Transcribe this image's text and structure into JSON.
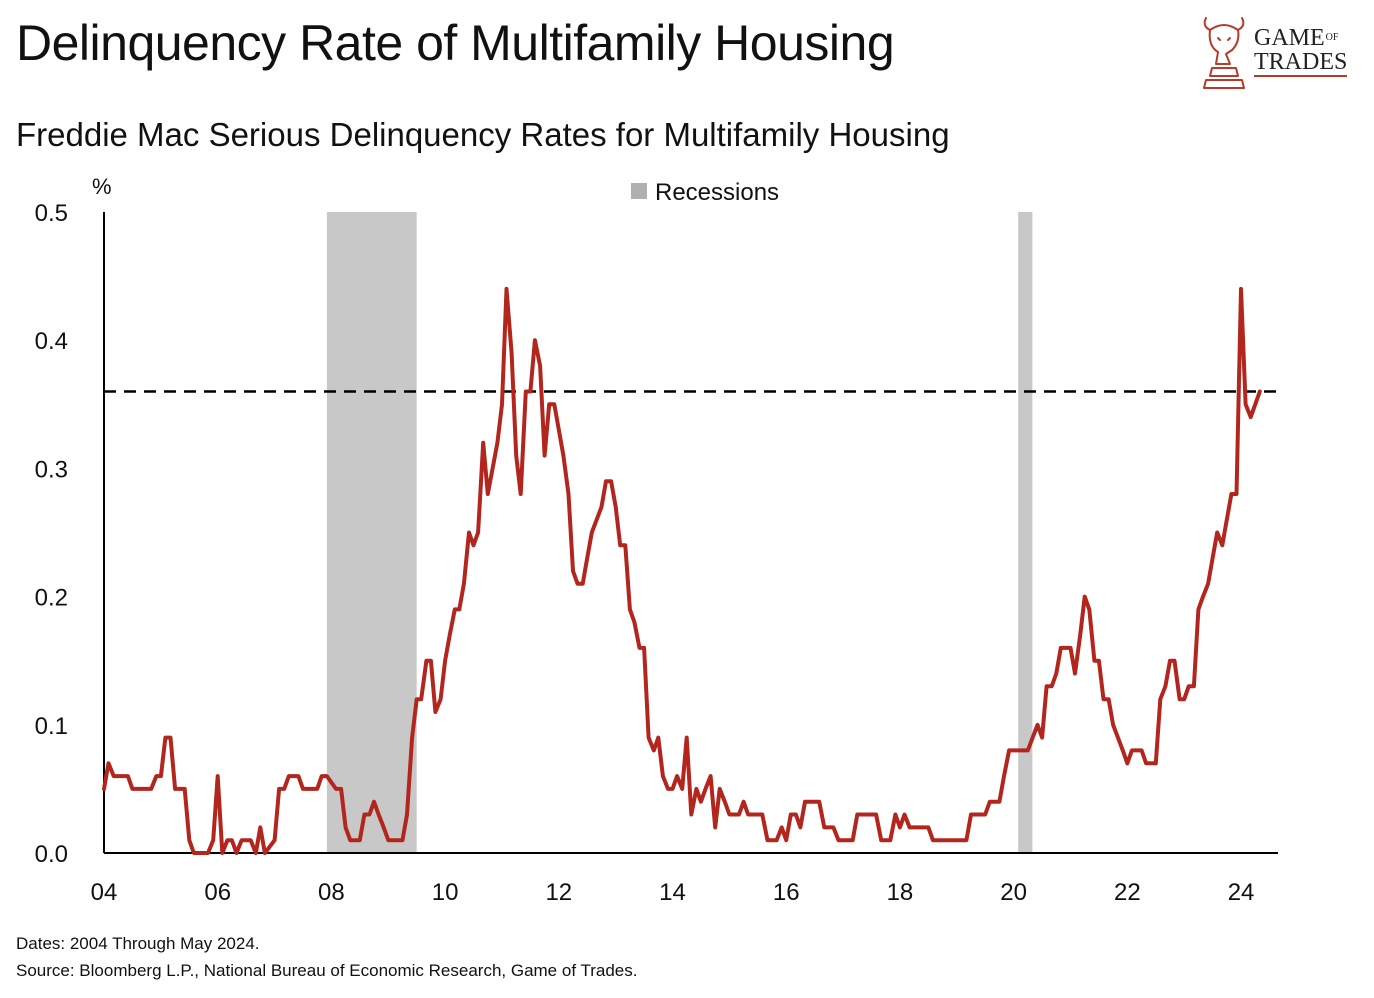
{
  "header": {
    "title": "Delinquency Rate of Multifamily Housing",
    "subtitle": "Freddie Mac Serious Delinquency Rates for Multifamily Housing"
  },
  "logo": {
    "line1": "GAME",
    "line1_small": "OF",
    "line2": "TRADES"
  },
  "footer": {
    "dates_note": "Dates: 2004 Through May 2024.",
    "source_note": "Source: Bloomberg L.P., National Bureau of Economic Research, Game of Trades."
  },
  "colors": {
    "line": "#b3261e",
    "recession": "#c8c8c8",
    "logo": "#b73a2a"
  },
  "chart_data": {
    "type": "line",
    "title": "Delinquency Rate of Multifamily Housing",
    "subtitle": "Freddie Mac Serious Delinquency Rates for Multifamily Housing",
    "unit_label": "%",
    "xlabel": "",
    "ylabel": "%",
    "ylim": [
      0.0,
      0.5
    ],
    "xlim": [
      2004.0,
      2024.65
    ],
    "y_ticks": [
      0.0,
      0.1,
      0.2,
      0.3,
      0.4,
      0.5
    ],
    "y_tick_labels": [
      "0.0",
      "0.1",
      "0.2",
      "0.3",
      "0.4",
      "0.5"
    ],
    "x_ticks": [
      2004,
      2006,
      2008,
      2010,
      2012,
      2014,
      2016,
      2018,
      2020,
      2022,
      2024
    ],
    "x_tick_labels": [
      "04",
      "06",
      "08",
      "10",
      "12",
      "14",
      "16",
      "18",
      "20",
      "22",
      "24"
    ],
    "legend": {
      "label": "Recessions",
      "position": "top-center"
    },
    "grid": false,
    "reference_line": {
      "y": 0.36,
      "style": "dashed"
    },
    "recessions": [
      {
        "start": 2007.92,
        "end": 2009.5
      },
      {
        "start": 2020.08,
        "end": 2020.33
      }
    ],
    "series": [
      {
        "name": "Freddie Mac Serious Delinquency Rate, Multifamily",
        "points": [
          [
            2004.0,
            0.05
          ],
          [
            2004.08,
            0.07
          ],
          [
            2004.17,
            0.06
          ],
          [
            2004.42,
            0.06
          ],
          [
            2004.5,
            0.05
          ],
          [
            2004.83,
            0.05
          ],
          [
            2004.92,
            0.06
          ],
          [
            2005.0,
            0.06
          ],
          [
            2005.08,
            0.09
          ],
          [
            2005.17,
            0.09
          ],
          [
            2005.25,
            0.05
          ],
          [
            2005.42,
            0.05
          ],
          [
            2005.5,
            0.01
          ],
          [
            2005.58,
            0.0
          ],
          [
            2005.83,
            0.0
          ],
          [
            2005.92,
            0.01
          ],
          [
            2006.0,
            0.06
          ],
          [
            2006.08,
            0.0
          ],
          [
            2006.17,
            0.01
          ],
          [
            2006.25,
            0.01
          ],
          [
            2006.33,
            0.0
          ],
          [
            2006.42,
            0.01
          ],
          [
            2006.58,
            0.01
          ],
          [
            2006.67,
            0.0
          ],
          [
            2006.75,
            0.02
          ],
          [
            2006.83,
            0.0
          ],
          [
            2007.0,
            0.01
          ],
          [
            2007.08,
            0.05
          ],
          [
            2007.17,
            0.05
          ],
          [
            2007.25,
            0.06
          ],
          [
            2007.42,
            0.06
          ],
          [
            2007.5,
            0.05
          ],
          [
            2007.75,
            0.05
          ],
          [
            2007.83,
            0.06
          ],
          [
            2007.92,
            0.06
          ],
          [
            2008.08,
            0.05
          ],
          [
            2008.17,
            0.05
          ],
          [
            2008.25,
            0.02
          ],
          [
            2008.33,
            0.01
          ],
          [
            2008.5,
            0.01
          ],
          [
            2008.58,
            0.03
          ],
          [
            2008.67,
            0.03
          ],
          [
            2008.75,
            0.04
          ],
          [
            2008.83,
            0.03
          ],
          [
            2008.92,
            0.02
          ],
          [
            2009.0,
            0.01
          ],
          [
            2009.25,
            0.01
          ],
          [
            2009.33,
            0.03
          ],
          [
            2009.42,
            0.09
          ],
          [
            2009.5,
            0.12
          ],
          [
            2009.58,
            0.12
          ],
          [
            2009.67,
            0.15
          ],
          [
            2009.75,
            0.15
          ],
          [
            2009.83,
            0.11
          ],
          [
            2009.92,
            0.12
          ],
          [
            2010.0,
            0.15
          ],
          [
            2010.08,
            0.17
          ],
          [
            2010.17,
            0.19
          ],
          [
            2010.25,
            0.19
          ],
          [
            2010.33,
            0.21
          ],
          [
            2010.42,
            0.25
          ],
          [
            2010.5,
            0.24
          ],
          [
            2010.58,
            0.25
          ],
          [
            2010.67,
            0.32
          ],
          [
            2010.75,
            0.28
          ],
          [
            2010.92,
            0.32
          ],
          [
            2011.0,
            0.35
          ],
          [
            2011.08,
            0.44
          ],
          [
            2011.17,
            0.39
          ],
          [
            2011.25,
            0.31
          ],
          [
            2011.33,
            0.28
          ],
          [
            2011.42,
            0.36
          ],
          [
            2011.5,
            0.36
          ],
          [
            2011.58,
            0.4
          ],
          [
            2011.67,
            0.38
          ],
          [
            2011.75,
            0.31
          ],
          [
            2011.83,
            0.35
          ],
          [
            2011.92,
            0.35
          ],
          [
            2012.08,
            0.31
          ],
          [
            2012.17,
            0.28
          ],
          [
            2012.25,
            0.22
          ],
          [
            2012.33,
            0.21
          ],
          [
            2012.42,
            0.21
          ],
          [
            2012.5,
            0.23
          ],
          [
            2012.58,
            0.25
          ],
          [
            2012.75,
            0.27
          ],
          [
            2012.83,
            0.29
          ],
          [
            2012.92,
            0.29
          ],
          [
            2013.0,
            0.27
          ],
          [
            2013.08,
            0.24
          ],
          [
            2013.17,
            0.24
          ],
          [
            2013.25,
            0.19
          ],
          [
            2013.33,
            0.18
          ],
          [
            2013.42,
            0.16
          ],
          [
            2013.5,
            0.16
          ],
          [
            2013.58,
            0.09
          ],
          [
            2013.67,
            0.08
          ],
          [
            2013.75,
            0.09
          ],
          [
            2013.83,
            0.06
          ],
          [
            2013.92,
            0.05
          ],
          [
            2014.0,
            0.05
          ],
          [
            2014.08,
            0.06
          ],
          [
            2014.17,
            0.05
          ],
          [
            2014.25,
            0.09
          ],
          [
            2014.33,
            0.03
          ],
          [
            2014.42,
            0.05
          ],
          [
            2014.5,
            0.04
          ],
          [
            2014.58,
            0.05
          ],
          [
            2014.67,
            0.06
          ],
          [
            2014.75,
            0.02
          ],
          [
            2014.83,
            0.05
          ],
          [
            2014.92,
            0.04
          ],
          [
            2015.0,
            0.03
          ],
          [
            2015.17,
            0.03
          ],
          [
            2015.25,
            0.04
          ],
          [
            2015.33,
            0.03
          ],
          [
            2015.58,
            0.03
          ],
          [
            2015.67,
            0.01
          ],
          [
            2015.83,
            0.01
          ],
          [
            2015.92,
            0.02
          ],
          [
            2016.0,
            0.01
          ],
          [
            2016.08,
            0.03
          ],
          [
            2016.17,
            0.03
          ],
          [
            2016.25,
            0.02
          ],
          [
            2016.33,
            0.04
          ],
          [
            2016.58,
            0.04
          ],
          [
            2016.67,
            0.02
          ],
          [
            2016.83,
            0.02
          ],
          [
            2016.92,
            0.01
          ],
          [
            2017.17,
            0.01
          ],
          [
            2017.25,
            0.03
          ],
          [
            2017.58,
            0.03
          ],
          [
            2017.67,
            0.01
          ],
          [
            2017.83,
            0.01
          ],
          [
            2017.92,
            0.03
          ],
          [
            2018.0,
            0.02
          ],
          [
            2018.08,
            0.03
          ],
          [
            2018.17,
            0.02
          ],
          [
            2018.5,
            0.02
          ],
          [
            2018.58,
            0.01
          ],
          [
            2019.17,
            0.01
          ],
          [
            2019.25,
            0.03
          ],
          [
            2019.5,
            0.03
          ],
          [
            2019.58,
            0.04
          ],
          [
            2019.75,
            0.04
          ],
          [
            2019.83,
            0.06
          ],
          [
            2019.92,
            0.08
          ],
          [
            2020.25,
            0.08
          ],
          [
            2020.42,
            0.1
          ],
          [
            2020.5,
            0.09
          ],
          [
            2020.58,
            0.13
          ],
          [
            2020.67,
            0.13
          ],
          [
            2020.75,
            0.14
          ],
          [
            2020.83,
            0.16
          ],
          [
            2021.0,
            0.16
          ],
          [
            2021.08,
            0.14
          ],
          [
            2021.17,
            0.17
          ],
          [
            2021.25,
            0.2
          ],
          [
            2021.33,
            0.19
          ],
          [
            2021.42,
            0.15
          ],
          [
            2021.5,
            0.15
          ],
          [
            2021.58,
            0.12
          ],
          [
            2021.67,
            0.12
          ],
          [
            2021.75,
            0.1
          ],
          [
            2021.92,
            0.08
          ],
          [
            2022.0,
            0.07
          ],
          [
            2022.08,
            0.08
          ],
          [
            2022.25,
            0.08
          ],
          [
            2022.33,
            0.07
          ],
          [
            2022.5,
            0.07
          ],
          [
            2022.58,
            0.12
          ],
          [
            2022.67,
            0.13
          ],
          [
            2022.75,
            0.15
          ],
          [
            2022.83,
            0.15
          ],
          [
            2022.92,
            0.12
          ],
          [
            2023.0,
            0.12
          ],
          [
            2023.08,
            0.13
          ],
          [
            2023.17,
            0.13
          ],
          [
            2023.25,
            0.19
          ],
          [
            2023.33,
            0.2
          ],
          [
            2023.42,
            0.21
          ],
          [
            2023.5,
            0.23
          ],
          [
            2023.58,
            0.25
          ],
          [
            2023.67,
            0.24
          ],
          [
            2023.75,
            0.26
          ],
          [
            2023.83,
            0.28
          ],
          [
            2023.92,
            0.28
          ],
          [
            2024.0,
            0.44
          ],
          [
            2024.08,
            0.35
          ],
          [
            2024.17,
            0.34
          ],
          [
            2024.25,
            0.35
          ],
          [
            2024.33,
            0.36
          ]
        ]
      }
    ]
  }
}
